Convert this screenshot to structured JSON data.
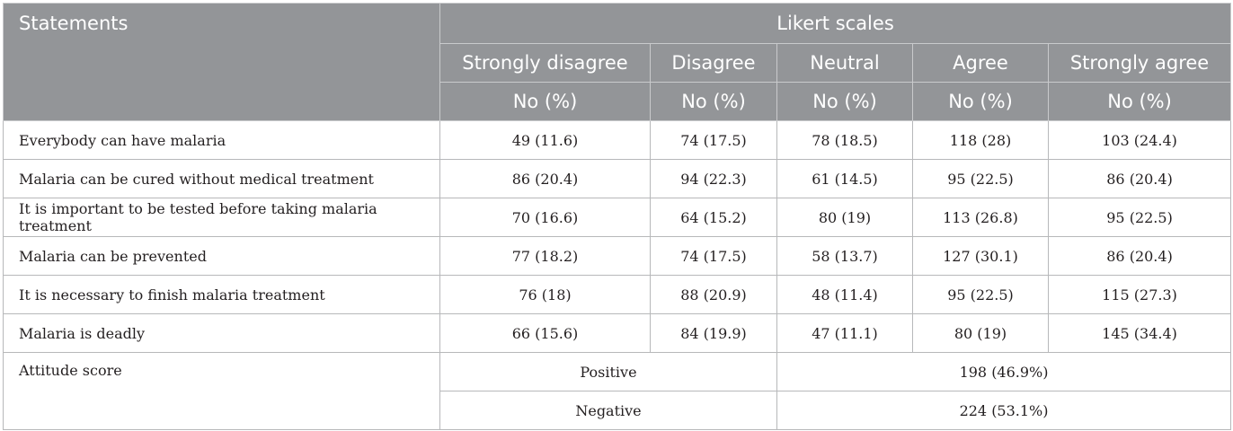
{
  "table": {
    "header": {
      "statements": "Statements",
      "likert_group": "Likert scales",
      "scales": [
        "Strongly disagree",
        "Disagree",
        "Neutral",
        "Agree",
        "Strongly agree"
      ],
      "unit": "No (%)"
    },
    "rows": [
      {
        "statement": "Everybody can have malaria",
        "values": [
          "49 (11.6)",
          "74 (17.5)",
          "78 (18.5)",
          "118 (28)",
          "103 (24.4)"
        ]
      },
      {
        "statement": "Malaria can be cured without medical treatment",
        "values": [
          "86 (20.4)",
          "94 (22.3)",
          "61 (14.5)",
          "95 (22.5)",
          "86 (20.4)"
        ]
      },
      {
        "statement": "It is important to be tested before taking malaria treatment",
        "values": [
          "70 (16.6)",
          "64 (15.2)",
          "80 (19)",
          "113 (26.8)",
          "95 (22.5)"
        ]
      },
      {
        "statement": "Malaria can be prevented",
        "values": [
          "77 (18.2)",
          "74 (17.5)",
          "58 (13.7)",
          "127 (30.1)",
          "86 (20.4)"
        ]
      },
      {
        "statement": "It is necessary to finish malaria treatment",
        "values": [
          "76 (18)",
          "88 (20.9)",
          "48 (11.4)",
          "95 (22.5)",
          "115 (27.3)"
        ]
      },
      {
        "statement": "Malaria is deadly",
        "values": [
          "66 (15.6)",
          "84 (19.9)",
          "47 (11.1)",
          "80 (19)",
          "145 (34.4)"
        ]
      }
    ],
    "attitude": {
      "label": "Attitude score",
      "positive_label": "Positive",
      "positive_value": "198 (46.9%)",
      "negative_label": "Negative",
      "negative_value": "224 (53.1%)"
    },
    "colors": {
      "header_bg": "#939598",
      "header_text": "#ffffff",
      "body_text": "#231f20"
    }
  }
}
